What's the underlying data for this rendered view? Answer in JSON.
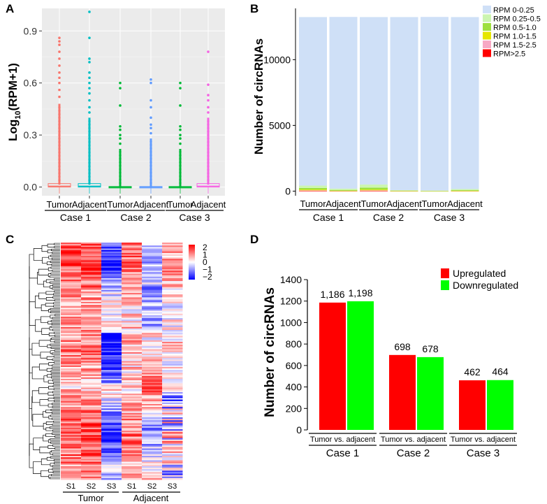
{
  "colors": {
    "panel_bg": "#ebebeb",
    "grid": "#ffffff",
    "tumor1": "#f8766d",
    "adj1": "#00bfc4",
    "case2": "#00ba38",
    "adj2": "#619cff",
    "case3": "#00ba38",
    "adj3": "#f564e3",
    "stack": [
      "#cfe0f7",
      "#ccf5b0",
      "#9ee03e",
      "#e6e600",
      "#f7a8c4",
      "#ff0000"
    ],
    "up": "#ff0000",
    "down": "#00ff00",
    "heat_low": "#0000ff",
    "heat_mid": "#ffffff",
    "heat_high": "#ff0000"
  },
  "panel_labels": [
    "A",
    "B",
    "C",
    "D"
  ],
  "chart_data": [
    {
      "id": "A",
      "type": "box",
      "ylabel": {
        "main": "Log",
        "sub": "10",
        "rest": "(RPM+1)"
      },
      "yticks": [
        "0.0",
        "0.3",
        "0.6",
        "0.9"
      ],
      "ytick_values": [
        0,
        0.3,
        0.6,
        0.9
      ],
      "ylim": [
        -0.05,
        1.03
      ],
      "groups": [
        "Case 1",
        "Case 2",
        "Case 3"
      ],
      "series": [
        {
          "name": "Tumor",
          "group": "Case 1",
          "q1": 0.0,
          "median": 0.005,
          "q3": 0.02,
          "dense_top": 0.48,
          "outliers": [
            0.52,
            0.56,
            0.6,
            0.63,
            0.66,
            0.7,
            0.74,
            0.78,
            0.82,
            0.84,
            0.86
          ]
        },
        {
          "name": "Adjacent",
          "group": "Case 1",
          "q1": 0.0,
          "median": 0.005,
          "q3": 0.02,
          "dense_top": 0.4,
          "outliers": [
            0.43,
            0.46,
            0.5,
            0.54,
            0.57,
            0.6,
            0.63,
            0.66,
            0.72,
            0.74,
            0.86,
            1.01
          ]
        },
        {
          "name": "Tumor",
          "group": "Case 2",
          "q1": 0.0,
          "median": 0.0,
          "q3": 0.003,
          "dense_top": 0.22,
          "outliers": [
            0.25,
            0.28,
            0.3,
            0.33,
            0.35,
            0.47,
            0.57,
            0.6
          ]
        },
        {
          "name": "Adjacent",
          "group": "Case 2",
          "q1": 0.0,
          "median": 0.0,
          "q3": 0.003,
          "dense_top": 0.28,
          "outliers": [
            0.31,
            0.34,
            0.36,
            0.4,
            0.46,
            0.5,
            0.6,
            0.62
          ]
        },
        {
          "name": "Tumor",
          "group": "Case 3",
          "q1": 0.0,
          "median": 0.0,
          "q3": 0.003,
          "dense_top": 0.22,
          "outliers": [
            0.25,
            0.28,
            0.3,
            0.33,
            0.35,
            0.47,
            0.57,
            0.6
          ]
        },
        {
          "name": "Adjacent",
          "group": "Case 3",
          "q1": 0.0,
          "median": 0.005,
          "q3": 0.02,
          "dense_top": 0.4,
          "outliers": [
            0.43,
            0.46,
            0.5,
            0.53,
            0.59,
            0.78
          ]
        }
      ]
    },
    {
      "id": "B",
      "type": "stacked_bar",
      "ylabel": "Number of circRNAs",
      "yticks": [
        "0",
        "5000",
        "10000"
      ],
      "ytick_values": [
        0,
        5000,
        10000
      ],
      "ylim": [
        -350,
        13900
      ],
      "groups": [
        "Case 1",
        "Case 2",
        "Case 3"
      ],
      "bars": [
        "Tumor",
        "Adjacent",
        "Tumor",
        "Adjacent",
        "Tumor",
        "Adjacent"
      ],
      "legend": [
        "RPM 0-0.25",
        "RPM 0.25-0.5",
        "RPM 0.5-1.0",
        "RPM 1.0-1.5",
        "RPM 1.5-2.5",
        "RPM>2.5"
      ],
      "values": [
        [
          12820,
          180,
          120,
          60,
          40,
          20
        ],
        [
          13060,
          100,
          60,
          20,
          8,
          2
        ],
        [
          12740,
          240,
          140,
          60,
          40,
          20
        ],
        [
          13170,
          30,
          25,
          10,
          3,
          2
        ],
        [
          13210,
          20,
          10,
          5,
          3,
          2
        ],
        [
          13080,
          90,
          50,
          15,
          4,
          1
        ]
      ]
    },
    {
      "id": "C",
      "type": "heatmap",
      "columns": [
        "S1",
        "S2",
        "S3",
        "S1",
        "S2",
        "S3"
      ],
      "groups": [
        "Tumor",
        "Adjacent"
      ],
      "legend_ticks": [
        "2",
        "1",
        "0",
        "−1",
        "−2"
      ],
      "legend_values": [
        2,
        1,
        0,
        -1,
        -2
      ],
      "vmin": -2,
      "vmax": 2,
      "rows": 160
    },
    {
      "id": "D",
      "type": "bar",
      "ylabel": "Number of circRNAs",
      "yticks": [
        "0",
        "200",
        "400",
        "600",
        "800",
        "1000",
        "1200",
        "1400"
      ],
      "ytick_values": [
        0,
        200,
        400,
        600,
        800,
        1000,
        1200,
        1400
      ],
      "ylim": [
        0,
        1400
      ],
      "categories": [
        "Case 1",
        "Case 2",
        "Case 3"
      ],
      "category_label": "Tumor vs. adjacent",
      "series": [
        {
          "name": "Upregulated",
          "values": [
            1186,
            698,
            462
          ],
          "labels": [
            "1,186",
            "698",
            "462"
          ]
        },
        {
          "name": "Downregulated",
          "values": [
            1198,
            678,
            464
          ],
          "labels": [
            "1,198",
            "678",
            "464"
          ]
        }
      ]
    }
  ]
}
